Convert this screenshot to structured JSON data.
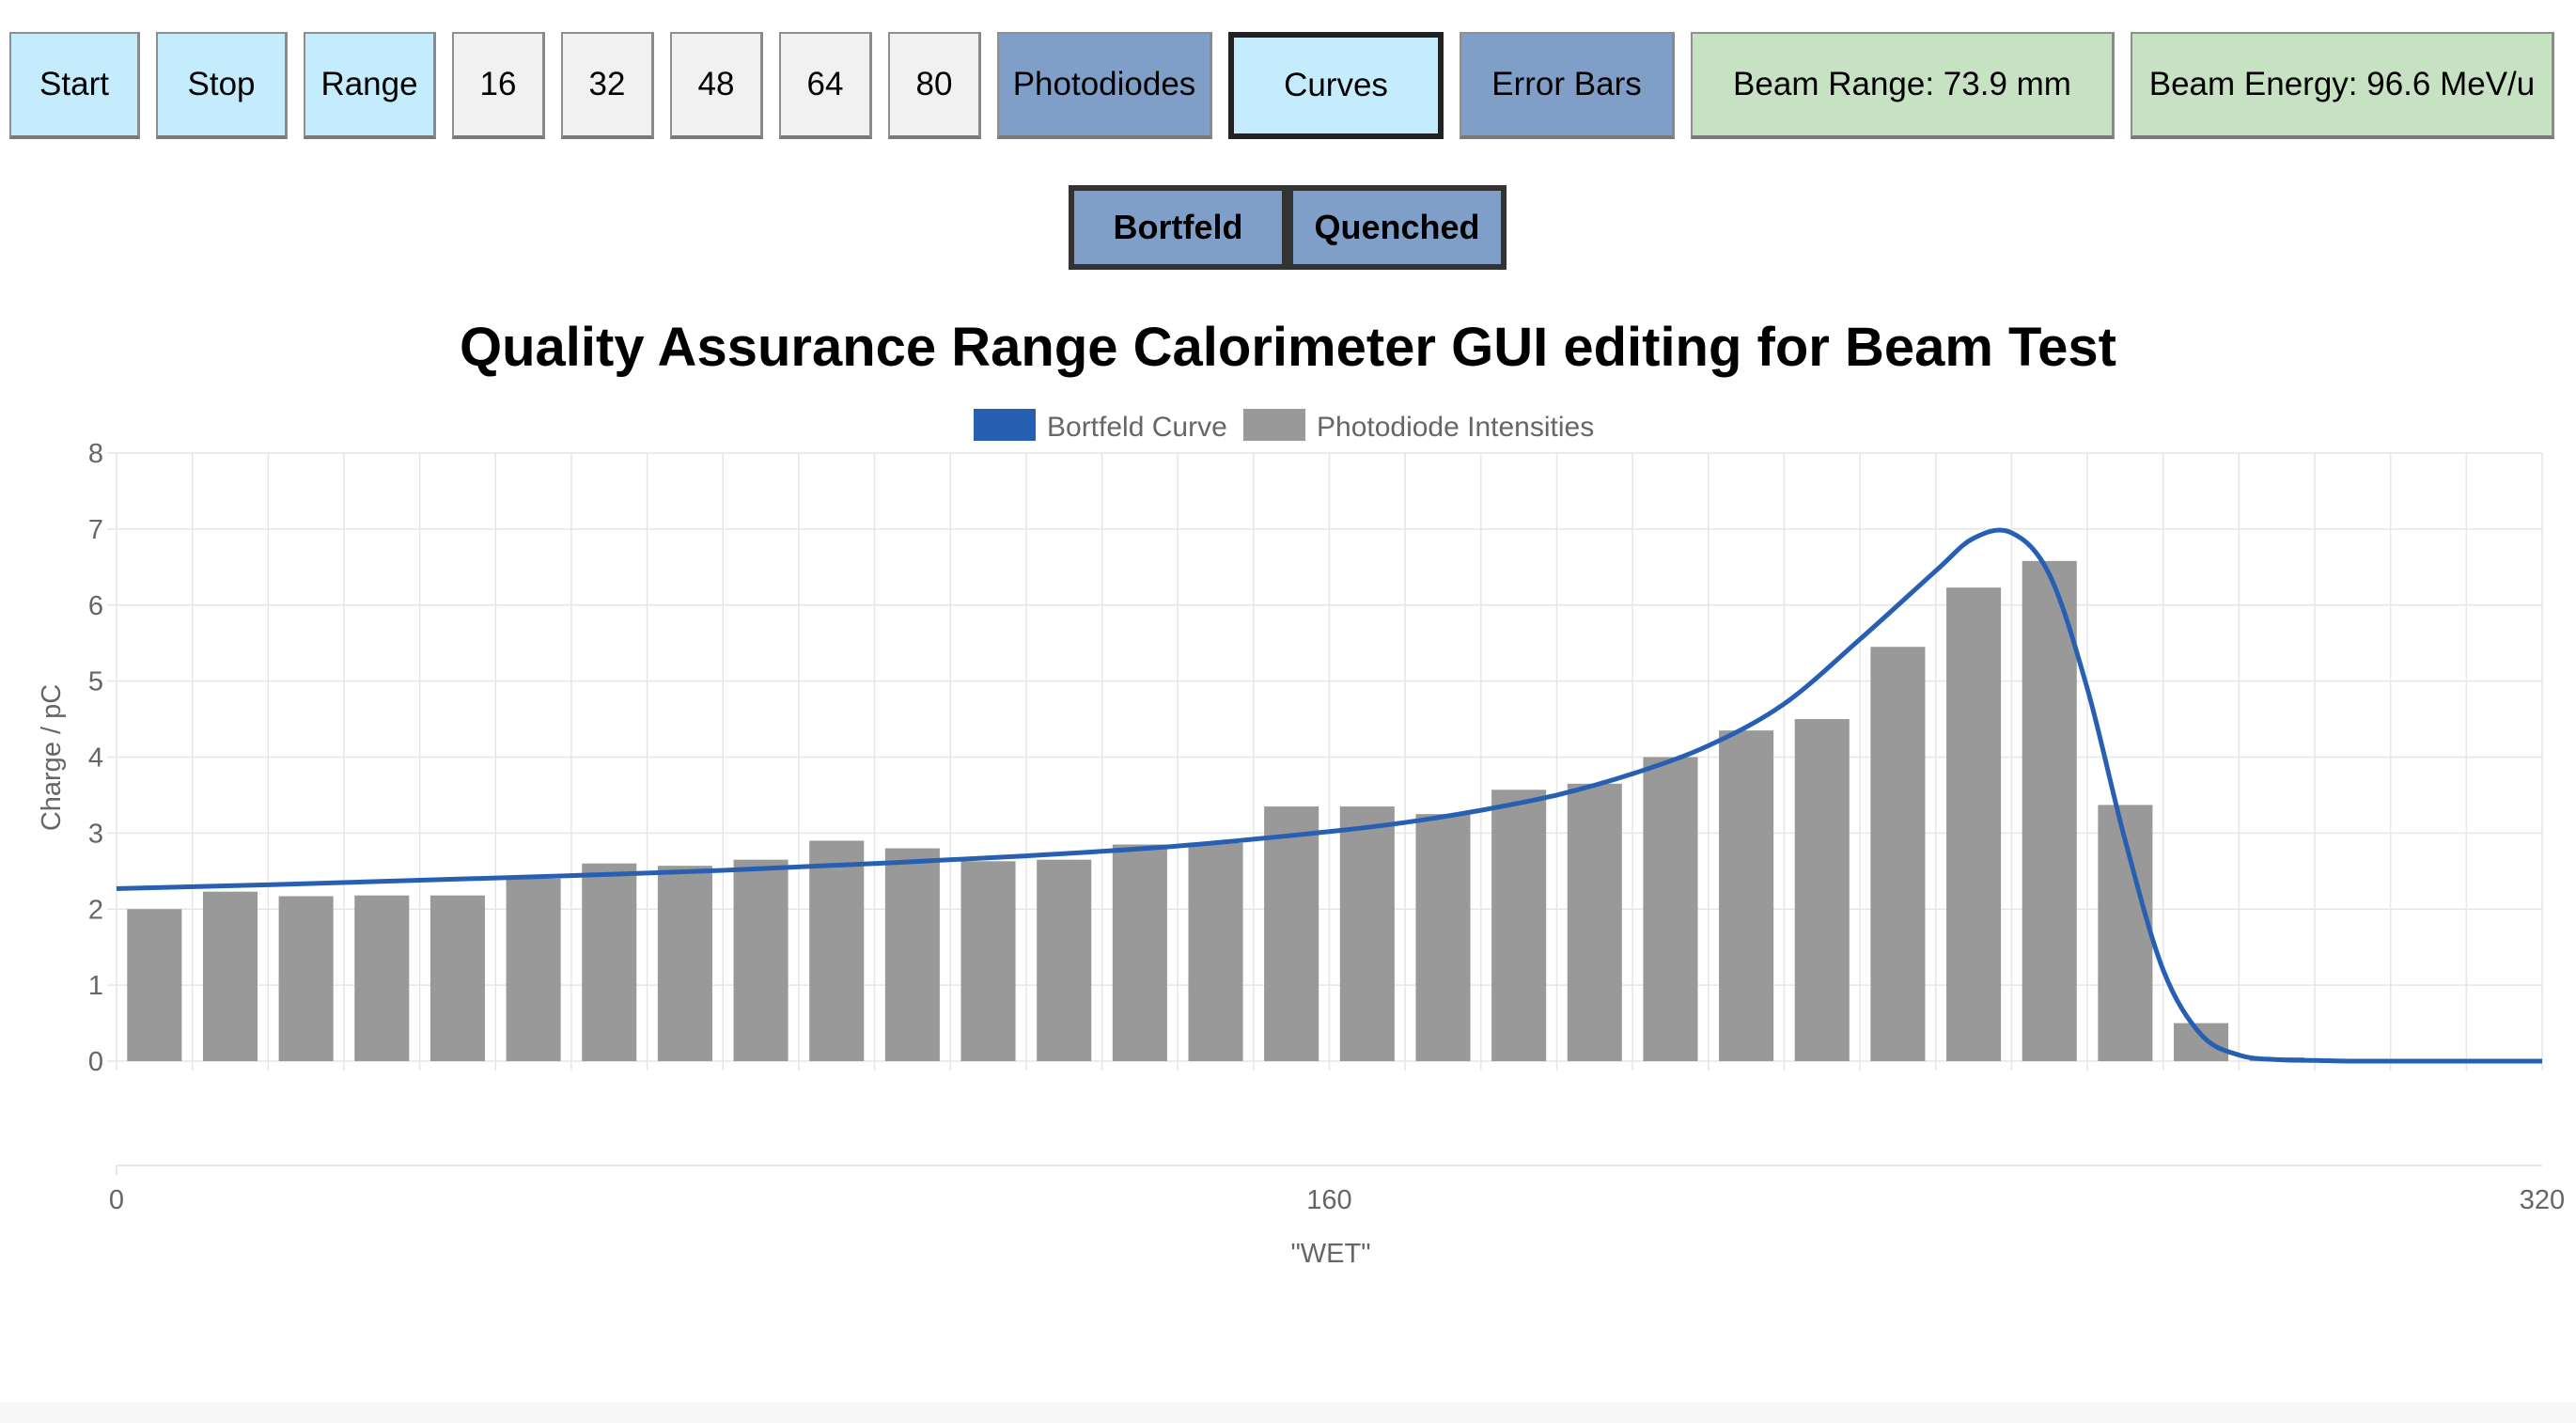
{
  "toolbar": {
    "start": "Start",
    "stop": "Stop",
    "range": "Range",
    "n16": "16",
    "n32": "32",
    "n48": "48",
    "n64": "64",
    "n80": "80",
    "photodiodes": "Photodiodes",
    "curves": "Curves",
    "error_bars": "Error Bars",
    "beam_range": "Beam Range: 73.9 mm",
    "beam_energy": "Beam Energy: 96.6 MeV/u"
  },
  "subbar": {
    "bortfeld": "Bortfeld",
    "quenched": "Quenched"
  },
  "colors": {
    "curve": "#2760b2",
    "bars": "#999999"
  },
  "chart_data": {
    "type": "bar",
    "title": "Quality Assurance Range Calorimeter GUI editing for Beam Test",
    "xlabel": "\"WET\"",
    "ylabel": "Charge / pC",
    "xlim": [
      0,
      320
    ],
    "ylim": [
      0,
      8
    ],
    "x_ticks": [
      "0",
      "160",
      "320"
    ],
    "y_ticks": [
      "0",
      "1",
      "2",
      "3",
      "4",
      "5",
      "6",
      "7",
      "8"
    ],
    "grid": true,
    "legend": "top-center",
    "series": [
      {
        "name": "Bortfeld Curve",
        "type": "line",
        "x": [
          0,
          20,
          40,
          60,
          80,
          100,
          120,
          140,
          160,
          170,
          180,
          190,
          200,
          210,
          220,
          230,
          240,
          245,
          250,
          255,
          260,
          265,
          270,
          275,
          280,
          285,
          290,
          295,
          300,
          310,
          320
        ],
        "values": [
          2.27,
          2.32,
          2.38,
          2.44,
          2.51,
          2.6,
          2.7,
          2.83,
          3.02,
          3.14,
          3.3,
          3.5,
          3.78,
          4.15,
          4.7,
          5.55,
          6.45,
          6.88,
          6.95,
          6.4,
          4.9,
          2.9,
          1.2,
          0.35,
          0.08,
          0.02,
          0.01,
          0.0,
          0.0,
          0.0,
          0.0
        ]
      },
      {
        "name": "Photodiode Intensities",
        "type": "bar",
        "x": [
          5,
          15,
          25,
          35,
          45,
          55,
          65,
          75,
          85,
          95,
          105,
          115,
          125,
          135,
          145,
          155,
          165,
          175,
          185,
          195,
          205,
          215,
          225,
          235,
          245,
          255,
          265,
          275,
          285,
          295,
          305,
          315
        ],
        "values": [
          2.0,
          2.23,
          2.17,
          2.18,
          2.18,
          2.4,
          2.6,
          2.57,
          2.65,
          2.9,
          2.8,
          2.63,
          2.65,
          2.85,
          2.87,
          3.35,
          3.35,
          3.25,
          3.57,
          3.65,
          4.0,
          4.35,
          4.5,
          5.45,
          6.23,
          6.58,
          3.37,
          0.5,
          0.05,
          0.0,
          0.0,
          0.0
        ]
      }
    ]
  }
}
